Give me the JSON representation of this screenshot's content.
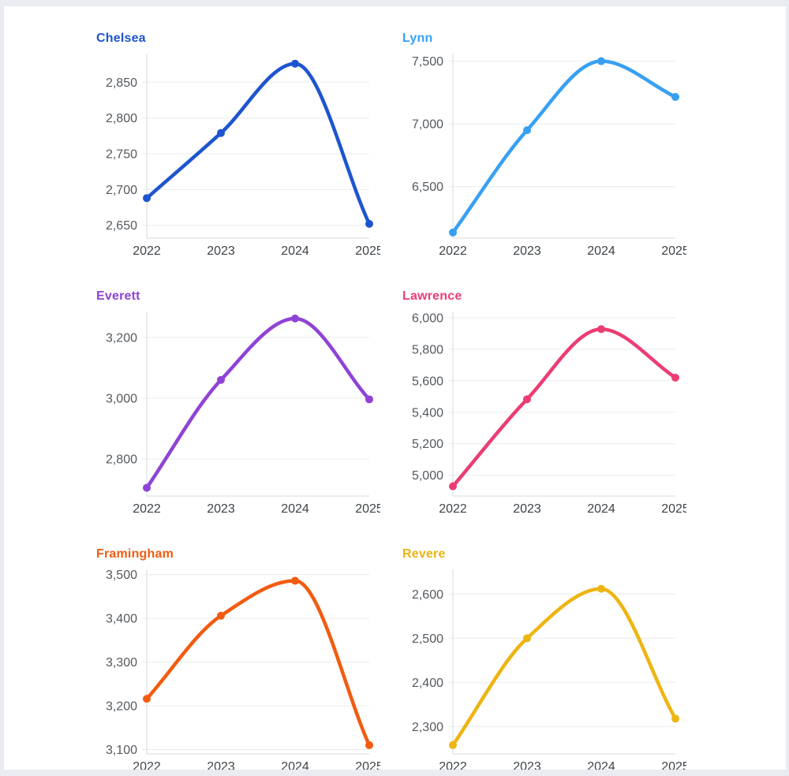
{
  "page": {
    "background_color": "#e9ecf0",
    "card_background_color": "#ffffff"
  },
  "chart_data": [
    {
      "type": "line",
      "name": "Chelsea",
      "color": "#1d55cf",
      "categories": [
        "2022",
        "2023",
        "2024",
        "2025"
      ],
      "values": [
        2688,
        2779,
        2876,
        2652
      ],
      "yticks": [
        2650,
        2700,
        2750,
        2800,
        2850
      ],
      "ylim": [
        2632,
        2890
      ],
      "grid": true,
      "legend": "none"
    },
    {
      "type": "line",
      "name": "Lynn",
      "color": "#38a0f2",
      "categories": [
        "2022",
        "2023",
        "2024",
        "2025"
      ],
      "values": [
        6135,
        6950,
        7500,
        7215
      ],
      "yticks": [
        6500,
        7000,
        7500
      ],
      "ylim": [
        6090,
        7560
      ],
      "grid": true,
      "legend": "none"
    },
    {
      "type": "line",
      "name": "Everett",
      "color": "#8f43d6",
      "categories": [
        "2022",
        "2023",
        "2024",
        "2025"
      ],
      "values": [
        2705,
        3060,
        3262,
        2996
      ],
      "yticks": [
        2800,
        3000,
        3200
      ],
      "ylim": [
        2678,
        3285
      ],
      "grid": true,
      "legend": "none"
    },
    {
      "type": "line",
      "name": "Lawrence",
      "color": "#ec3d73",
      "categories": [
        "2022",
        "2023",
        "2024",
        "2025"
      ],
      "values": [
        4930,
        5483,
        5928,
        5620
      ],
      "yticks": [
        5000,
        5200,
        5400,
        5600,
        5800,
        6000
      ],
      "ylim": [
        4868,
        6040
      ],
      "grid": true,
      "legend": "none"
    },
    {
      "type": "line",
      "name": "Framingham",
      "color": "#f15c11",
      "categories": [
        "2022",
        "2023",
        "2024",
        "2025"
      ],
      "values": [
        3216,
        3406,
        3486,
        3110
      ],
      "yticks": [
        3100,
        3200,
        3300,
        3400,
        3500
      ],
      "ylim": [
        3090,
        3512
      ],
      "grid": true,
      "legend": "none"
    },
    {
      "type": "line",
      "name": "Revere",
      "color": "#eeb412",
      "categories": [
        "2022",
        "2023",
        "2024",
        "2025"
      ],
      "values": [
        2258,
        2500,
        2612,
        2318
      ],
      "yticks": [
        2300,
        2400,
        2500,
        2600
      ],
      "ylim": [
        2238,
        2656
      ],
      "grid": true,
      "legend": "none"
    }
  ]
}
